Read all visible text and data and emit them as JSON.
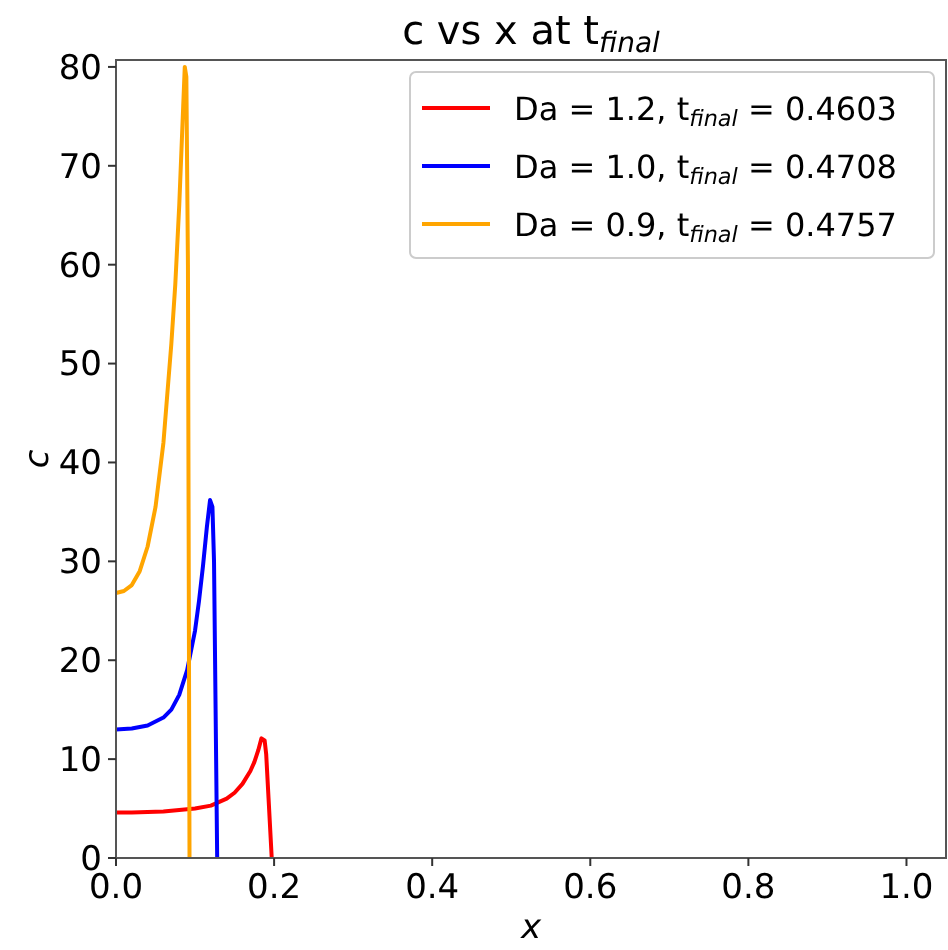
{
  "chart_data": {
    "type": "line",
    "title": "c vs x at t$_{final}$",
    "xlabel": "x",
    "ylabel": "c",
    "xlim": [
      0,
      1.05
    ],
    "ylim": [
      0,
      80.7
    ],
    "xticks": [
      {
        "value": 0,
        "label": "0.0"
      },
      {
        "value": 0.2,
        "label": "0.2"
      },
      {
        "value": 0.4,
        "label": "0.4"
      },
      {
        "value": 0.6,
        "label": "0.6"
      },
      {
        "value": 0.8,
        "label": "0.8"
      },
      {
        "value": 1,
        "label": "1.0"
      }
    ],
    "yticks": [
      0,
      10,
      20,
      30,
      40,
      50,
      60,
      70,
      80
    ],
    "grid": false,
    "legend": "top right",
    "marker": "none",
    "line_style": "solid",
    "series": [
      {
        "name": "Da = 1.2, t$_{final}$ = 0.4603",
        "color": "#ff0000",
        "x": [
          0,
          0.02,
          0.04,
          0.06,
          0.08,
          0.1,
          0.12,
          0.14,
          0.15,
          0.16,
          0.17,
          0.175,
          0.18,
          0.184,
          0.188,
          0.19,
          0.193,
          0.197
        ],
        "values": [
          4.6,
          4.6,
          4.65,
          4.7,
          4.85,
          5.0,
          5.3,
          6.0,
          6.6,
          7.5,
          8.8,
          9.7,
          10.9,
          12.1,
          11.9,
          10.5,
          6,
          0
        ]
      },
      {
        "name": "Da = 1.0, t$_{final}$ = 0.4708",
        "color": "#0000ff",
        "x": [
          0,
          0.02,
          0.04,
          0.06,
          0.07,
          0.08,
          0.09,
          0.1,
          0.105,
          0.11,
          0.115,
          0.119,
          0.122,
          0.124,
          0.126,
          0.128
        ],
        "values": [
          13.0,
          13.1,
          13.4,
          14.2,
          15,
          16.5,
          19,
          23,
          26,
          29.5,
          33.5,
          36.2,
          35.5,
          30,
          15,
          0
        ]
      },
      {
        "name": "Da = 0.9, t$_{final}$ = 0.4757",
        "color": "#ffa500",
        "x": [
          0,
          0.01,
          0.02,
          0.03,
          0.04,
          0.05,
          0.06,
          0.07,
          0.075,
          0.08,
          0.085,
          0.087,
          0.089,
          0.091,
          0.093
        ],
        "values": [
          26.8,
          27,
          27.6,
          29,
          31.5,
          35.5,
          42,
          52,
          58,
          66,
          76,
          80,
          79,
          60,
          0
        ]
      }
    ]
  }
}
